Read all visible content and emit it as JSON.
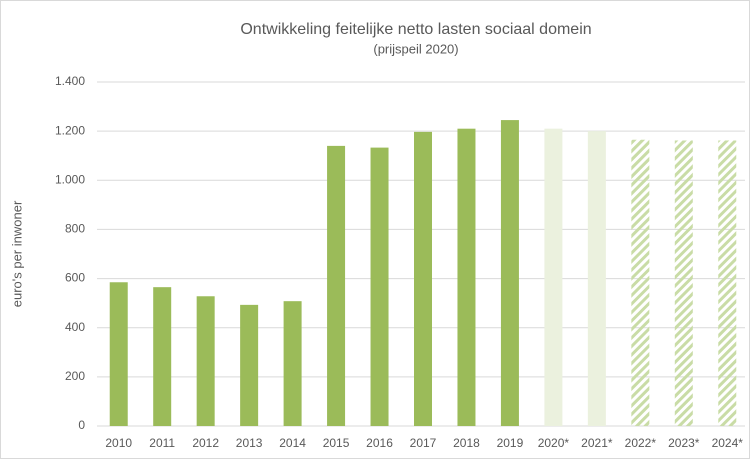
{
  "chart_data": {
    "type": "bar",
    "title": "Ontwikkeling feitelijke netto lasten sociaal domein",
    "subtitle": "(prijspeil 2020)",
    "y_label": "euro's per inwoner",
    "categories": [
      "2010",
      "2011",
      "2012",
      "2013",
      "2014",
      "2015",
      "2016",
      "2017",
      "2018",
      "2019",
      "2020*",
      "2021*",
      "2022*",
      "2023*",
      "2024*"
    ],
    "values": [
      585,
      565,
      528,
      493,
      508,
      1140,
      1133,
      1197,
      1210,
      1245,
      1210,
      1200,
      1165,
      1162,
      1162
    ],
    "colors": [
      "#9bbb59",
      "#9bbb59",
      "#9bbb59",
      "#9bbb59",
      "#9bbb59",
      "#9bbb59",
      "#9bbb59",
      "#9bbb59",
      "#9bbb59",
      "#9bbb59",
      "#ebf1de",
      "#ebf1de",
      "#c9dca6",
      "#c9dca6",
      "#c9dca6"
    ],
    "hatched": [
      false,
      false,
      false,
      false,
      false,
      false,
      false,
      false,
      false,
      false,
      false,
      false,
      true,
      true,
      true
    ],
    "ylim": [
      0,
      1400
    ],
    "yticks": [
      0,
      200,
      400,
      600,
      800,
      {
        "value": 1000,
        "label": "1.000"
      },
      {
        "value": 1200,
        "label": "1.200"
      },
      {
        "value": 1400,
        "label": "1.400"
      }
    ],
    "grid": true
  }
}
